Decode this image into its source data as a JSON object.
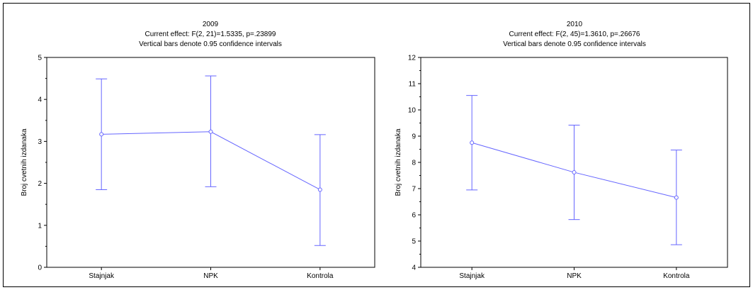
{
  "chart_data": [
    {
      "type": "line",
      "title": "2009",
      "subtitle": "Current effect: F(2, 21)=1.5335, p=.23899",
      "note": "Vertical bars denote 0.95 confidence intervals",
      "xlabel": "",
      "ylabel": "Broj cvetnih izdanaka",
      "categories": [
        "Stajnjak",
        "NPK",
        "Kontrola"
      ],
      "values": [
        3.17,
        3.23,
        1.85
      ],
      "ci_lower": [
        1.85,
        1.92,
        0.52
      ],
      "ci_upper": [
        4.49,
        4.56,
        3.16
      ],
      "ylim": [
        0,
        5
      ],
      "yticks": [
        0,
        1,
        2,
        3,
        4,
        5
      ],
      "grid": false,
      "legend": "none",
      "color": "#6666ff"
    },
    {
      "type": "line",
      "title": "2010",
      "subtitle": "Current effect: F(2, 45)=1.3610, p=.26676",
      "note": "Vertical bars denote 0.95 confidence intervals",
      "xlabel": "",
      "ylabel": "Broj cvetnih izdanaka",
      "categories": [
        "Stajnjak",
        "NPK",
        "Kontrola"
      ],
      "values": [
        8.75,
        7.62,
        6.66
      ],
      "ci_lower": [
        6.95,
        5.82,
        4.86
      ],
      "ci_upper": [
        10.55,
        9.42,
        8.47
      ],
      "ylim": [
        4,
        12
      ],
      "yticks": [
        4,
        5,
        6,
        7,
        8,
        9,
        10,
        11,
        12
      ],
      "grid": false,
      "legend": "none",
      "color": "#6666ff"
    }
  ]
}
